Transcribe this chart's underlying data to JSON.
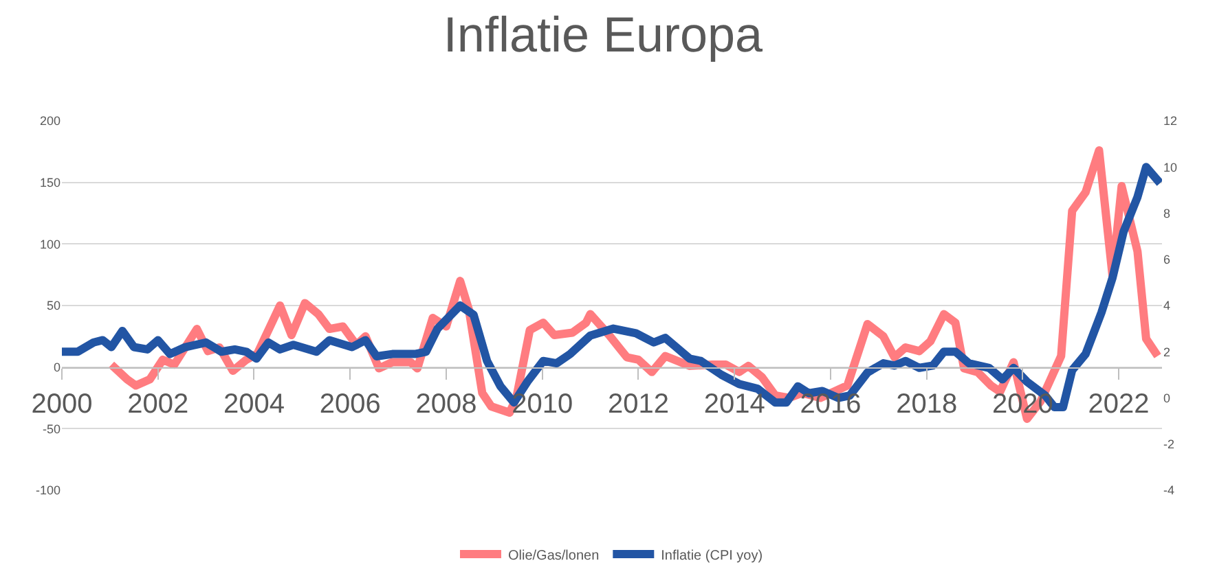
{
  "chart_data": {
    "type": "line",
    "title": "Inflatie Europa",
    "xlim": [
      2000,
      2022.9
    ],
    "xticks": [
      2000,
      2002,
      2004,
      2006,
      2008,
      2010,
      2012,
      2014,
      2016,
      2018,
      2020,
      2022
    ],
    "ylim": [
      -100,
      200
    ],
    "yticks": [
      -100,
      -50,
      0,
      50,
      100,
      150,
      200
    ],
    "y2lim": [
      -4,
      12
    ],
    "y2ticks": [
      -4,
      -2,
      0,
      2,
      4,
      6,
      8,
      10,
      12
    ],
    "grid": "y",
    "legend": "bottom",
    "marker": "none",
    "line_style": "solid",
    "series": [
      {
        "name": "Olie/Gas/lonen",
        "color": "#ff7c80",
        "x": [
          2001.03,
          2001.36,
          2001.54,
          2001.83,
          2002.1,
          2002.34,
          2002.81,
          2003.04,
          2003.28,
          2003.56,
          2003.84,
          2004.07,
          2004.54,
          2004.78,
          2005.06,
          2005.34,
          2005.57,
          2005.85,
          2006.13,
          2006.32,
          2006.6,
          2006.88,
          2007.26,
          2007.4,
          2007.72,
          2008.0,
          2008.29,
          2008.47,
          2008.75,
          2008.94,
          2009.32,
          2009.46,
          2009.74,
          2010.02,
          2010.25,
          2010.63,
          2010.91,
          2011.0,
          2011.39,
          2011.76,
          2012.0,
          2012.28,
          2012.56,
          2013.07,
          2013.54,
          2013.82,
          2014.1,
          2014.29,
          2014.57,
          2014.85,
          2015.13,
          2015.41,
          2015.79,
          2016.35,
          2016.77,
          2017.1,
          2017.33,
          2017.56,
          2017.85,
          2018.08,
          2018.36,
          2018.6,
          2018.78,
          2019.06,
          2019.34,
          2019.53,
          2019.81,
          2020.09,
          2020.37,
          2020.8,
          2021.03,
          2021.31,
          2021.59,
          2021.87,
          2022.06,
          2022.39,
          2022.57,
          2022.81
        ],
        "values": [
          2,
          -10,
          -15,
          -10,
          6,
          2,
          31,
          13,
          16,
          -3,
          6,
          11,
          50,
          26,
          52,
          43,
          31,
          33,
          18,
          25,
          -1,
          4,
          4,
          -1,
          40,
          33,
          70,
          47,
          -21,
          -32,
          -37,
          -25,
          30,
          36,
          26,
          28,
          36,
          43,
          26,
          8,
          6,
          -4,
          9,
          1,
          2,
          2,
          -4,
          1,
          -8,
          -23,
          -25,
          -21,
          -25,
          -15,
          35,
          25,
          8,
          16,
          13,
          21,
          43,
          36,
          -1,
          -4,
          -15,
          -20,
          4,
          -42,
          -28,
          9,
          127,
          142,
          176,
          74,
          147,
          94,
          23,
          9
        ]
      },
      {
        "name": "Inflatie (CPI yoy)",
        "color": "#2255a4",
        "axis": "y2",
        "x": [
          2000.0,
          2000.33,
          2000.66,
          2000.85,
          2001.03,
          2001.26,
          2001.5,
          2001.78,
          2002.0,
          2002.25,
          2002.57,
          2003.0,
          2003.32,
          2003.6,
          2003.84,
          2004.05,
          2004.3,
          2004.54,
          2004.82,
          2005.3,
          2005.57,
          2006.04,
          2006.32,
          2006.55,
          2006.88,
          2007.35,
          2007.58,
          2007.82,
          2008.29,
          2008.57,
          2008.85,
          2009.13,
          2009.41,
          2009.69,
          2010.02,
          2010.3,
          2010.58,
          2011.0,
          2011.48,
          2011.95,
          2012.32,
          2012.56,
          2013.07,
          2013.3,
          2013.73,
          2014.1,
          2014.48,
          2014.85,
          2015.08,
          2015.32,
          2015.55,
          2015.83,
          2016.16,
          2016.4,
          2016.77,
          2017.1,
          2017.33,
          2017.56,
          2017.85,
          2018.13,
          2018.36,
          2018.6,
          2018.88,
          2019.3,
          2019.58,
          2019.81,
          2020.09,
          2020.47,
          2020.66,
          2020.84,
          2021.03,
          2021.31,
          2021.64,
          2021.87,
          2022.1,
          2022.39,
          2022.57,
          2022.86
        ],
        "values": [
          2.0,
          2.0,
          2.4,
          2.5,
          2.2,
          2.9,
          2.2,
          2.1,
          2.5,
          1.9,
          2.2,
          2.4,
          2.0,
          2.1,
          2.0,
          1.7,
          2.4,
          2.1,
          2.3,
          2.0,
          2.5,
          2.2,
          2.5,
          1.8,
          1.9,
          1.9,
          2.0,
          3.0,
          4.0,
          3.6,
          1.6,
          0.5,
          -0.2,
          0.7,
          1.6,
          1.5,
          1.9,
          2.7,
          3.0,
          2.8,
          2.4,
          2.6,
          1.7,
          1.6,
          1.0,
          0.6,
          0.4,
          -0.2,
          -0.2,
          0.5,
          0.2,
          0.3,
          0.0,
          0.1,
          1.1,
          1.5,
          1.4,
          1.6,
          1.3,
          1.4,
          2.0,
          2.0,
          1.5,
          1.3,
          0.8,
          1.3,
          0.7,
          0.1,
          -0.4,
          -0.4,
          1.2,
          1.9,
          3.7,
          5.2,
          7.2,
          8.7,
          10.0,
          9.3
        ]
      }
    ]
  }
}
